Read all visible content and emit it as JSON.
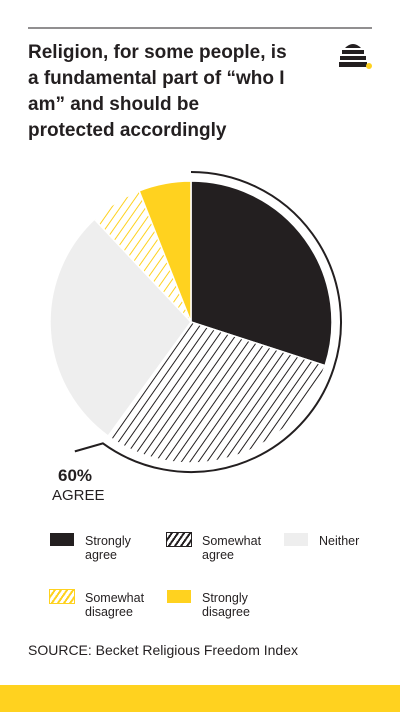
{
  "chart_data": {
    "type": "pie",
    "title": "Religion, for some people, is a fundamental part of “who I am” and should be protected accordingly",
    "categories": [
      "Strongly agree",
      "Somewhat agree",
      "Neither",
      "Somewhat disagree",
      "Strongly disagree"
    ],
    "values": [
      30,
      30,
      28,
      6,
      6
    ],
    "colors": [
      "#231f20",
      "#231f20",
      "#eeeeee",
      "#ffd21f",
      "#ffd21f"
    ],
    "hatched": [
      false,
      true,
      false,
      true,
      false
    ],
    "annotation": {
      "value": "60%",
      "text": "AGREE"
    },
    "source": "SOURCE: Becket Religious Freedom Index"
  }
}
